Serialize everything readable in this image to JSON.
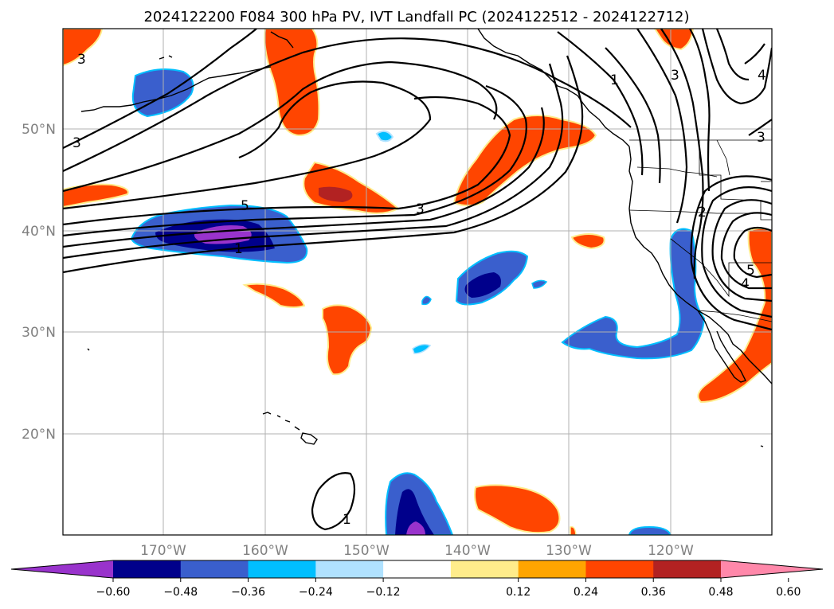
{
  "title": "2024122200 F084 300 hPa PV, IVT Landfall PC (2024122512 - 2024122712)",
  "map": {
    "lon_labels": [
      "170°W",
      "160°W",
      "150°W",
      "140°W",
      "130°W",
      "120°W"
    ],
    "lat_labels": [
      "50°N",
      "40°N",
      "30°N",
      "20°N"
    ],
    "gridlines": true
  },
  "contour_labels": [
    "3",
    "3",
    "1",
    "3",
    "4",
    "3",
    "5",
    "3",
    "1",
    "2",
    "5",
    "4",
    "1"
  ],
  "colorbar": {
    "tick_labels": [
      "−0.60",
      "−0.48",
      "−0.36",
      "−0.24",
      "−0.12",
      "0.12",
      "0.24",
      "0.36",
      "0.48",
      "0.60"
    ],
    "colors": [
      "#9933cc",
      "#00008b",
      "#3a5fcd",
      "#00bfff",
      "#b0e2ff",
      "#ffffff",
      "#ffec8b",
      "#ffa500",
      "#ff4500",
      "#b22222",
      "#ff88aa"
    ],
    "extend": "both"
  },
  "shading_colors": {
    "negative_1": "#b0e2ff",
    "negative_2": "#00bfff",
    "negative_3": "#3a5fcd",
    "negative_4": "#00008b",
    "negative_5": "#9933cc",
    "positive_1": "#ffec8b",
    "positive_2": "#ffa500",
    "positive_3": "#ff4500",
    "positive_4": "#b22222"
  }
}
